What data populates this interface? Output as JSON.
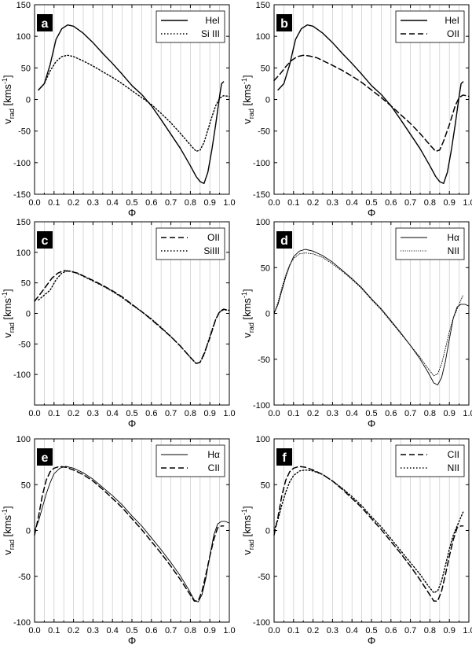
{
  "chart_data": [
    {
      "type": "line",
      "panel_label": "a",
      "xlabel": "Φ",
      "ylabel": "v_rad [kms^-1]",
      "xlim": [
        0.0,
        1.0
      ],
      "ylim": [
        -150,
        150
      ],
      "xticks": [
        0.0,
        0.1,
        0.2,
        0.3,
        0.4,
        0.5,
        0.6,
        0.7,
        0.8,
        0.9,
        1.0
      ],
      "yticks": [
        -150,
        -100,
        -50,
        0,
        50,
        100,
        150
      ],
      "vertical_grid": true,
      "legend_position": "top-right",
      "series": [
        {
          "name": "HeI",
          "style": "solid",
          "x": [
            0.02,
            0.05,
            0.08,
            0.11,
            0.14,
            0.17,
            0.2,
            0.25,
            0.3,
            0.35,
            0.4,
            0.45,
            0.5,
            0.55,
            0.6,
            0.65,
            0.7,
            0.75,
            0.8,
            0.83,
            0.85,
            0.87,
            0.89,
            0.91,
            0.93,
            0.95,
            0.96,
            0.97
          ],
          "y": [
            15,
            25,
            55,
            95,
            112,
            118,
            116,
            105,
            90,
            73,
            57,
            40,
            22,
            8,
            -10,
            -32,
            -55,
            -78,
            -105,
            -122,
            -130,
            -133,
            -115,
            -80,
            -40,
            5,
            25,
            28
          ]
        },
        {
          "name": "Si III",
          "style": "dotted",
          "x": [
            0.02,
            0.05,
            0.08,
            0.11,
            0.14,
            0.17,
            0.2,
            0.25,
            0.3,
            0.35,
            0.4,
            0.45,
            0.5,
            0.55,
            0.6,
            0.65,
            0.7,
            0.75,
            0.8,
            0.83,
            0.85,
            0.87,
            0.89,
            0.91,
            0.93,
            0.95,
            0.97,
            1.0
          ],
          "y": [
            15,
            25,
            45,
            60,
            68,
            70,
            68,
            61,
            53,
            44,
            35,
            25,
            14,
            3,
            -8,
            -22,
            -37,
            -54,
            -72,
            -82,
            -80,
            -68,
            -48,
            -28,
            -10,
            2,
            6,
            5
          ]
        }
      ]
    },
    {
      "type": "line",
      "panel_label": "b",
      "xlabel": "Φ",
      "ylabel": "v_rad [kms^-1]",
      "xlim": [
        0.0,
        1.0
      ],
      "ylim": [
        -150,
        150
      ],
      "xticks": [
        0.0,
        0.1,
        0.2,
        0.3,
        0.4,
        0.5,
        0.6,
        0.7,
        0.8,
        0.9,
        1.0
      ],
      "yticks": [
        -150,
        -100,
        -50,
        0,
        50,
        100,
        150
      ],
      "vertical_grid": true,
      "legend_position": "top-right",
      "series": [
        {
          "name": "HeI",
          "style": "solid",
          "x": [
            0.02,
            0.05,
            0.08,
            0.11,
            0.14,
            0.17,
            0.2,
            0.25,
            0.3,
            0.35,
            0.4,
            0.45,
            0.5,
            0.55,
            0.6,
            0.65,
            0.7,
            0.75,
            0.8,
            0.83,
            0.85,
            0.87,
            0.89,
            0.91,
            0.93,
            0.95,
            0.96,
            0.97
          ],
          "y": [
            15,
            25,
            55,
            95,
            112,
            118,
            116,
            105,
            90,
            73,
            57,
            40,
            22,
            8,
            -10,
            -32,
            -55,
            -78,
            -105,
            -122,
            -130,
            -133,
            -115,
            -80,
            -40,
            5,
            25,
            28
          ]
        },
        {
          "name": "OII",
          "style": "dashed",
          "x": [
            0.0,
            0.03,
            0.06,
            0.09,
            0.12,
            0.15,
            0.18,
            0.22,
            0.26,
            0.3,
            0.35,
            0.4,
            0.45,
            0.5,
            0.55,
            0.6,
            0.65,
            0.7,
            0.75,
            0.8,
            0.83,
            0.85,
            0.87,
            0.9,
            0.93,
            0.95,
            0.97,
            1.0
          ],
          "y": [
            30,
            40,
            52,
            62,
            68,
            70,
            69,
            66,
            60,
            54,
            46,
            37,
            27,
            15,
            3,
            -10,
            -24,
            -38,
            -54,
            -72,
            -82,
            -80,
            -66,
            -40,
            -10,
            3,
            7,
            5
          ]
        }
      ]
    },
    {
      "type": "line",
      "panel_label": "c",
      "xlabel": "Φ",
      "ylabel": "v_rad [kms^-1]",
      "xlim": [
        0.0,
        1.0
      ],
      "ylim": [
        -150,
        150
      ],
      "xticks": [
        0.0,
        0.1,
        0.2,
        0.3,
        0.4,
        0.5,
        0.6,
        0.7,
        0.8,
        0.9,
        1.0
      ],
      "yticks": [
        -100,
        -50,
        0,
        50,
        100,
        150
      ],
      "vertical_grid": true,
      "legend_position": "top-right",
      "series": [
        {
          "name": "OII",
          "style": "dashed",
          "x": [
            0.0,
            0.03,
            0.06,
            0.09,
            0.12,
            0.15,
            0.18,
            0.22,
            0.26,
            0.3,
            0.35,
            0.4,
            0.45,
            0.5,
            0.55,
            0.6,
            0.65,
            0.7,
            0.75,
            0.8,
            0.83,
            0.85,
            0.87,
            0.9,
            0.93,
            0.95,
            0.97,
            1.0
          ],
          "y": [
            20,
            32,
            45,
            58,
            66,
            70,
            69,
            66,
            60,
            54,
            46,
            37,
            27,
            15,
            3,
            -10,
            -24,
            -38,
            -54,
            -72,
            -82,
            -80,
            -66,
            -40,
            -10,
            3,
            7,
            5
          ]
        },
        {
          "name": "SiIII",
          "style": "dotted",
          "x": [
            0.02,
            0.05,
            0.08,
            0.11,
            0.14,
            0.17,
            0.2,
            0.25,
            0.3,
            0.35,
            0.4,
            0.45,
            0.5,
            0.55,
            0.6,
            0.65,
            0.7,
            0.75,
            0.8,
            0.83,
            0.85,
            0.87,
            0.89,
            0.91,
            0.93,
            0.95,
            0.97,
            1.0
          ],
          "y": [
            22,
            30,
            38,
            55,
            66,
            70,
            68,
            61,
            53,
            45,
            36,
            26,
            14,
            3,
            -9,
            -23,
            -38,
            -54,
            -72,
            -82,
            -80,
            -68,
            -48,
            -28,
            -10,
            2,
            6,
            5
          ]
        }
      ]
    },
    {
      "type": "line",
      "panel_label": "d",
      "xlabel": "Φ",
      "ylabel": "v_rad [kms^-1]",
      "xlim": [
        0.0,
        1.0
      ],
      "ylim": [
        -100,
        100
      ],
      "xticks": [
        0.0,
        0.1,
        0.2,
        0.3,
        0.4,
        0.5,
        0.6,
        0.7,
        0.8,
        0.9,
        1.0
      ],
      "yticks": [
        -100,
        -50,
        0,
        50,
        100
      ],
      "vertical_grid": true,
      "legend_position": "top-right",
      "series": [
        {
          "name": "Hα",
          "style": "thin-solid",
          "x": [
            0.0,
            0.02,
            0.04,
            0.06,
            0.08,
            0.1,
            0.13,
            0.16,
            0.2,
            0.25,
            0.3,
            0.35,
            0.4,
            0.45,
            0.5,
            0.55,
            0.6,
            0.65,
            0.7,
            0.75,
            0.79,
            0.82,
            0.84,
            0.86,
            0.88,
            0.9,
            0.92,
            0.94,
            0.96,
            0.98,
            1.0
          ],
          "y": [
            0,
            10,
            25,
            40,
            52,
            62,
            68,
            70,
            68,
            63,
            56,
            47,
            38,
            28,
            16,
            5,
            -8,
            -21,
            -35,
            -50,
            -64,
            -76,
            -78,
            -70,
            -52,
            -28,
            -5,
            7,
            10,
            10,
            8
          ]
        },
        {
          "name": "NII",
          "style": "thin-dotted",
          "x": [
            0.0,
            0.02,
            0.04,
            0.06,
            0.08,
            0.1,
            0.13,
            0.16,
            0.2,
            0.25,
            0.3,
            0.35,
            0.4,
            0.45,
            0.5,
            0.55,
            0.6,
            0.65,
            0.7,
            0.75,
            0.79,
            0.82,
            0.84,
            0.86,
            0.88,
            0.9,
            0.92,
            0.94,
            0.96,
            0.97
          ],
          "y": [
            0,
            12,
            28,
            42,
            53,
            60,
            65,
            66,
            65,
            61,
            54,
            46,
            37,
            27,
            15,
            4,
            -9,
            -22,
            -35,
            -48,
            -60,
            -68,
            -66,
            -55,
            -38,
            -20,
            -5,
            5,
            15,
            20
          ]
        }
      ]
    },
    {
      "type": "line",
      "panel_label": "e",
      "xlabel": "Φ",
      "ylabel": "v_rad [kms^-1]",
      "xlim": [
        0.0,
        1.0
      ],
      "ylim": [
        -100,
        100
      ],
      "xticks": [
        0.0,
        0.1,
        0.2,
        0.3,
        0.4,
        0.5,
        0.6,
        0.7,
        0.8,
        0.9,
        1.0
      ],
      "yticks": [
        -100,
        -50,
        0,
        50,
        100
      ],
      "vertical_grid": true,
      "legend_position": "top-right",
      "series": [
        {
          "name": "Hα",
          "style": "thin-solid",
          "x": [
            0.0,
            0.02,
            0.04,
            0.06,
            0.08,
            0.1,
            0.13,
            0.16,
            0.2,
            0.25,
            0.3,
            0.35,
            0.4,
            0.45,
            0.5,
            0.55,
            0.6,
            0.65,
            0.7,
            0.75,
            0.79,
            0.82,
            0.84,
            0.86,
            0.88,
            0.9,
            0.92,
            0.94,
            0.96,
            0.98,
            1.0
          ],
          "y": [
            0,
            10,
            25,
            40,
            52,
            62,
            68,
            70,
            68,
            63,
            56,
            47,
            38,
            28,
            16,
            5,
            -8,
            -21,
            -35,
            -50,
            -64,
            -76,
            -78,
            -70,
            -52,
            -28,
            -5,
            7,
            10,
            10,
            8
          ]
        },
        {
          "name": "CII",
          "style": "dashed",
          "x": [
            0.0,
            0.02,
            0.04,
            0.06,
            0.08,
            0.1,
            0.13,
            0.16,
            0.2,
            0.25,
            0.3,
            0.35,
            0.4,
            0.45,
            0.5,
            0.55,
            0.6,
            0.65,
            0.7,
            0.75,
            0.79,
            0.82,
            0.84,
            0.86,
            0.88,
            0.9,
            0.92,
            0.94,
            0.96,
            0.97
          ],
          "y": [
            -5,
            15,
            38,
            55,
            64,
            68,
            70,
            69,
            66,
            61,
            54,
            45,
            35,
            25,
            13,
            1,
            -12,
            -25,
            -39,
            -54,
            -67,
            -77,
            -77,
            -66,
            -48,
            -28,
            -10,
            3,
            5,
            5
          ]
        }
      ]
    },
    {
      "type": "line",
      "panel_label": "f",
      "xlabel": "Φ",
      "ylabel": "v_rad [kms^-1]",
      "xlim": [
        0.0,
        1.0
      ],
      "ylim": [
        -100,
        100
      ],
      "xticks": [
        0.0,
        0.1,
        0.2,
        0.3,
        0.4,
        0.5,
        0.6,
        0.7,
        0.8,
        0.9,
        1.0
      ],
      "yticks": [
        -100,
        -50,
        0,
        50,
        100
      ],
      "vertical_grid": true,
      "legend_position": "top-right",
      "series": [
        {
          "name": "CII",
          "style": "dashed",
          "x": [
            0.0,
            0.02,
            0.04,
            0.06,
            0.08,
            0.1,
            0.13,
            0.16,
            0.2,
            0.25,
            0.3,
            0.35,
            0.4,
            0.45,
            0.5,
            0.55,
            0.6,
            0.65,
            0.7,
            0.75,
            0.79,
            0.82,
            0.84,
            0.86,
            0.88,
            0.9,
            0.92,
            0.94,
            0.96,
            0.97
          ],
          "y": [
            -5,
            15,
            38,
            55,
            64,
            68,
            70,
            69,
            66,
            61,
            54,
            45,
            35,
            25,
            13,
            1,
            -12,
            -25,
            -39,
            -54,
            -67,
            -77,
            -77,
            -66,
            -48,
            -28,
            -10,
            3,
            5,
            5
          ]
        },
        {
          "name": "NII",
          "style": "dotted",
          "x": [
            0.0,
            0.02,
            0.04,
            0.06,
            0.08,
            0.1,
            0.13,
            0.16,
            0.2,
            0.25,
            0.3,
            0.35,
            0.4,
            0.45,
            0.5,
            0.55,
            0.6,
            0.65,
            0.7,
            0.75,
            0.79,
            0.82,
            0.84,
            0.86,
            0.88,
            0.9,
            0.92,
            0.94,
            0.96,
            0.97
          ],
          "y": [
            0,
            12,
            28,
            42,
            53,
            60,
            65,
            66,
            65,
            61,
            54,
            46,
            37,
            27,
            15,
            4,
            -9,
            -22,
            -35,
            -48,
            -60,
            -68,
            -66,
            -55,
            -38,
            -20,
            -5,
            5,
            15,
            20
          ]
        }
      ]
    }
  ]
}
